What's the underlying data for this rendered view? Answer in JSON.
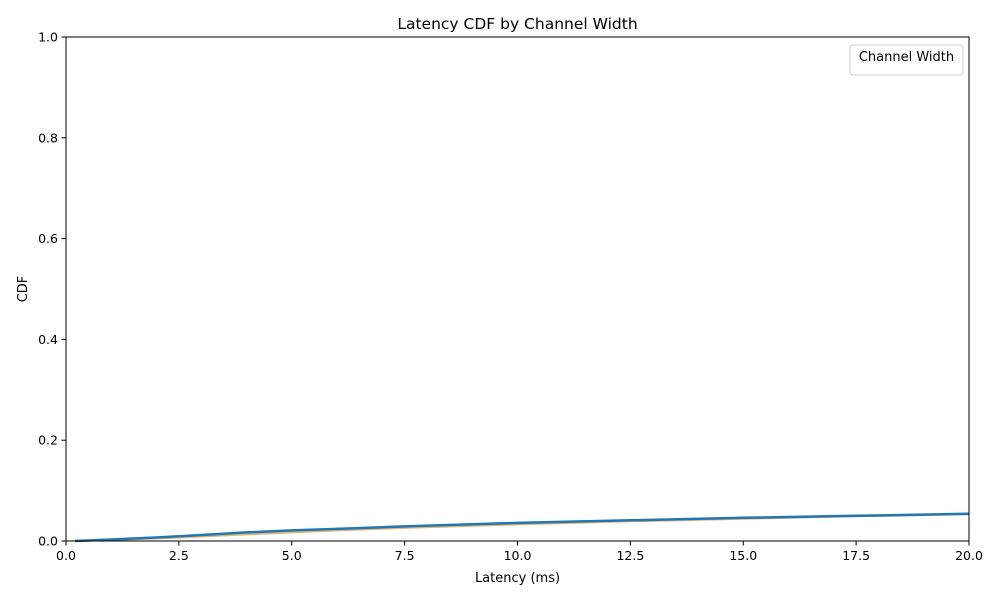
{
  "chart_data": {
    "type": "line",
    "title": "Latency CDF by Channel Width",
    "xlabel": "Latency (ms)",
    "ylabel": "CDF",
    "xlim": [
      0,
      20
    ],
    "ylim": [
      0,
      1
    ],
    "x_ticks": [
      "0.0",
      "2.5",
      "5.0",
      "7.5",
      "10.0",
      "12.5",
      "15.0",
      "17.5",
      "20.0"
    ],
    "y_ticks": [
      "0.0",
      "0.2",
      "0.4",
      "0.6",
      "0.8",
      "1.0"
    ],
    "grid": false,
    "legend": {
      "title": "Channel Width",
      "placement": "top-right",
      "entries": []
    },
    "series": [
      {
        "color": "#e8b274",
        "x": [
          0.2,
          1.0,
          2.0,
          3.0,
          4.0,
          5.0,
          6.0,
          7.5,
          10.0,
          12.5,
          15.0,
          17.5,
          20.0
        ],
        "y": [
          0.0,
          0.002,
          0.005,
          0.009,
          0.013,
          0.017,
          0.021,
          0.026,
          0.033,
          0.039,
          0.044,
          0.049,
          0.053
        ]
      },
      {
        "color": "#1f77b4",
        "x": [
          0.2,
          1.0,
          2.0,
          3.0,
          4.0,
          5.0,
          6.0,
          7.5,
          10.0,
          12.5,
          15.0,
          17.5,
          20.0
        ],
        "y": [
          0.0,
          0.003,
          0.007,
          0.012,
          0.017,
          0.021,
          0.024,
          0.029,
          0.036,
          0.041,
          0.046,
          0.05,
          0.054
        ]
      }
    ]
  }
}
